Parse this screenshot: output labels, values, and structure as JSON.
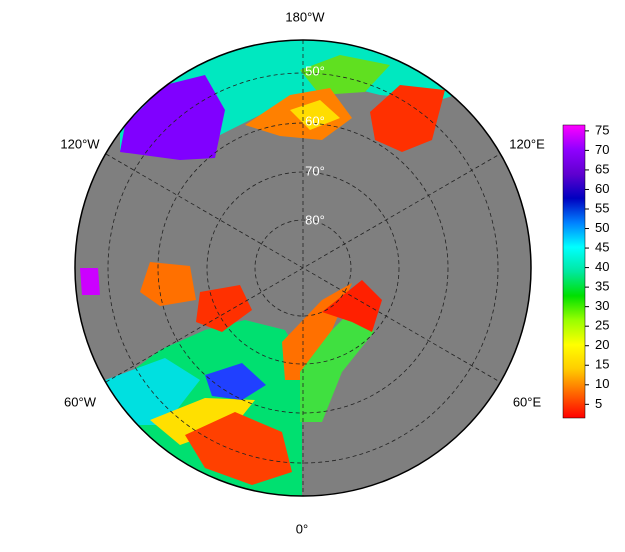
{
  "map": {
    "meridian_labels": [
      "180°W",
      "120°W",
      "120°E",
      "60°W",
      "60°E",
      "0°"
    ],
    "parallel_labels": [
      "50°",
      "60°",
      "70°",
      "80°"
    ]
  },
  "colorbar": {
    "ticks": [
      5,
      10,
      15,
      20,
      25,
      30,
      35,
      40,
      45,
      50,
      55,
      60,
      65,
      70,
      75
    ],
    "range": [
      1.5,
      76.5
    ],
    "colors": [
      "#ff0000",
      "#ff6600",
      "#ffcc00",
      "#ffff00",
      "#99ff00",
      "#00e000",
      "#00e8a0",
      "#00ffff",
      "#0080ff",
      "#0000c0",
      "#6000d0",
      "#9000ff",
      "#ff00ff"
    ]
  }
}
